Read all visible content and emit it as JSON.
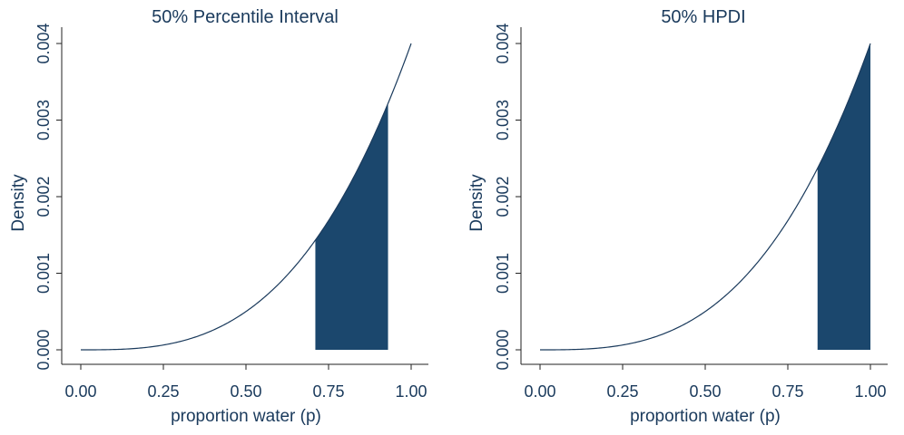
{
  "chart_data": [
    {
      "type": "area",
      "title": "50% Percentile Interval",
      "xlabel": "proportion water (p)",
      "ylabel": "Density",
      "xlim": [
        0,
        1
      ],
      "ylim": [
        0,
        0.004
      ],
      "x_ticks": [
        "0.00",
        "0.25",
        "0.50",
        "0.75",
        "1.00"
      ],
      "y_ticks": [
        "0.000",
        "0.001",
        "0.002",
        "0.003",
        "0.004"
      ],
      "series": [
        {
          "x": [
            0,
            0.1,
            0.2,
            0.3,
            0.4,
            0.5,
            0.6,
            0.7,
            0.8,
            0.9,
            1.0
          ],
          "y": [
            0,
            4e-06,
            3.2e-05,
            0.000108,
            0.000256,
            0.0005,
            0.000864,
            0.001372,
            0.002048,
            0.002916,
            0.004
          ]
        }
      ],
      "shaded_interval": [
        0.71,
        0.93
      ],
      "colors": {
        "curve": "#1a3a5c",
        "shade": "#1b476d",
        "text": "#1a3a5c"
      }
    },
    {
      "type": "area",
      "title": "50% HPDI",
      "xlabel": "proportion water (p)",
      "ylabel": "Density",
      "xlim": [
        0,
        1
      ],
      "ylim": [
        0,
        0.004
      ],
      "x_ticks": [
        "0.00",
        "0.25",
        "0.50",
        "0.75",
        "1.00"
      ],
      "y_ticks": [
        "0.000",
        "0.001",
        "0.002",
        "0.003",
        "0.004"
      ],
      "series": [
        {
          "x": [
            0,
            0.1,
            0.2,
            0.3,
            0.4,
            0.5,
            0.6,
            0.7,
            0.8,
            0.9,
            1.0
          ],
          "y": [
            0,
            4e-06,
            3.2e-05,
            0.000108,
            0.000256,
            0.0005,
            0.000864,
            0.001372,
            0.002048,
            0.002916,
            0.004
          ]
        }
      ],
      "shaded_interval": [
        0.84,
        1.0
      ],
      "colors": {
        "curve": "#1a3a5c",
        "shade": "#1b476d",
        "text": "#1a3a5c"
      }
    }
  ]
}
